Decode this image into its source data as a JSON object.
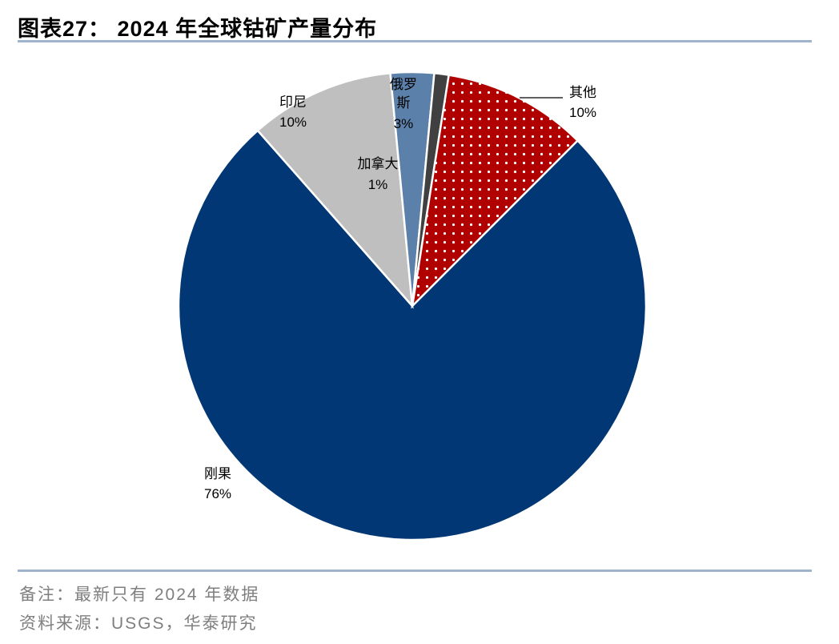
{
  "header": {
    "title": "图表27： 2024 年全球钴矿产量分布"
  },
  "footer": {
    "note": "备注：最新只有 2024 年数据",
    "source": "资料来源：USGS，华泰研究"
  },
  "chart_data": {
    "type": "pie",
    "title": "图表27： 2024 年全球钴矿产量分布",
    "unit": "%",
    "start_angle_deg": 45,
    "direction": "clockwise",
    "slices": [
      {
        "label": "刚果",
        "value": 76,
        "value_label": "76%",
        "color": "#003774",
        "pattern": "none"
      },
      {
        "label": "印尼",
        "value": 10,
        "value_label": "10%",
        "color": "#bfbfbf",
        "pattern": "none"
      },
      {
        "label": "俄罗斯",
        "value": 3,
        "value_label": "3%",
        "color": "#5b80aa",
        "pattern": "none"
      },
      {
        "label": "加拿大",
        "value": 1,
        "value_label": "1%",
        "color": "#404040",
        "pattern": "none"
      },
      {
        "label": "其他",
        "value": 10,
        "value_label": "10%",
        "color": "#b00000",
        "pattern": "white-dots"
      }
    ],
    "legend": "none"
  }
}
